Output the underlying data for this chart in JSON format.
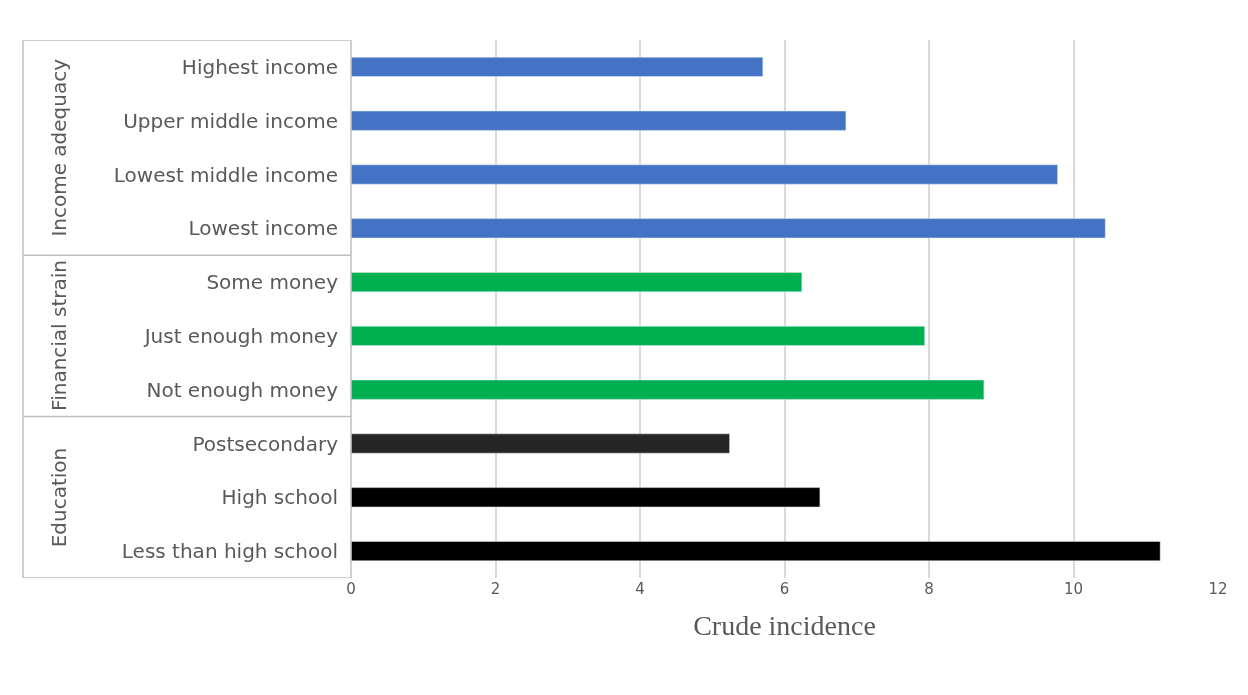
{
  "chart_data": {
    "type": "bar",
    "orientation": "horizontal",
    "xlabel": "Crude incidence",
    "categories": [
      "Highest income",
      "Upper middle income",
      "Lowest middle income",
      "Lowest income",
      "Some money",
      "Just enough money",
      "Not enough money",
      "Postsecondary",
      "High school",
      "Less than high school"
    ],
    "values": [
      5.7,
      6.85,
      9.78,
      10.44,
      6.24,
      7.94,
      8.76,
      5.24,
      6.49,
      11.2
    ],
    "colors": [
      "#4472c4",
      "#4472c4",
      "#4472c4",
      "#4472c4",
      "#00b050",
      "#00b050",
      "#00b050",
      "#262626",
      "#000000",
      "#000000"
    ],
    "xlim": [
      0,
      12
    ],
    "xticks": [
      0,
      2,
      4,
      6,
      8,
      10,
      12
    ],
    "grid": "x",
    "annotations": [
      "Income adequacy",
      "Financial strain",
      "Education"
    ]
  }
}
